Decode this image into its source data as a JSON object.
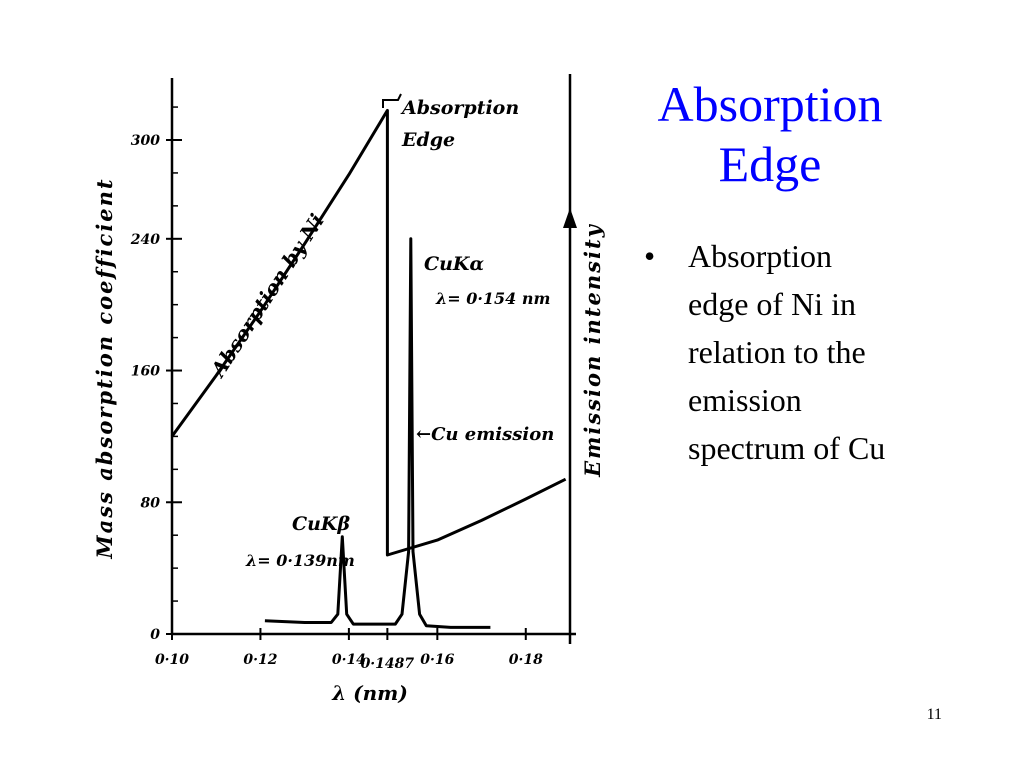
{
  "slide": {
    "title_line1": "Absorption",
    "title_line2": "Edge",
    "bullet_lines": [
      "Absorption",
      "edge of Ni in",
      "relation to the",
      "emission",
      "spectrum of Cu"
    ],
    "bullet_glyph": "•",
    "page_number": "11",
    "title_color": "#0000ff"
  },
  "chart_data": {
    "type": "line",
    "xlabel": "λ (nm)",
    "ylabel": "Mass absorption coefficient",
    "y2label": "Emission intensity",
    "xlim": [
      0.1,
      0.19
    ],
    "ylim": [
      0,
      330
    ],
    "x_ticks": [
      {
        "value": 0.1,
        "label": "0·10"
      },
      {
        "value": 0.12,
        "label": "0·12"
      },
      {
        "value": 0.14,
        "label": "0·14"
      },
      {
        "value": 0.1487,
        "label": "0·1487"
      },
      {
        "value": 0.16,
        "label": "0·16"
      },
      {
        "value": 0.18,
        "label": "0·18"
      }
    ],
    "y_ticks": [
      {
        "value": 0,
        "label": "0"
      },
      {
        "value": 80,
        "label": "80"
      },
      {
        "value": 160,
        "label": "160"
      },
      {
        "value": 240,
        "label": "240"
      },
      {
        "value": 300,
        "label": "300"
      }
    ],
    "series": [
      {
        "name": "Absorption by Ni",
        "x": [
          0.1,
          0.11,
          0.12,
          0.13,
          0.14,
          0.1487,
          0.1487,
          0.16,
          0.17,
          0.18,
          0.189
        ],
        "y": [
          120,
          157,
          196,
          237,
          279,
          318,
          48,
          57,
          69,
          82,
          94
        ]
      },
      {
        "name": "Cu emission",
        "x": [
          0.121,
          0.13,
          0.136,
          0.1375,
          0.1385,
          0.1395,
          0.141,
          0.145,
          0.1505,
          0.152,
          0.1535,
          0.154,
          0.1545,
          0.156,
          0.1575,
          0.163,
          0.172
        ],
        "y": [
          8,
          7,
          7,
          12,
          59,
          12,
          6,
          6,
          6,
          12,
          50,
          240,
          50,
          12,
          5,
          4,
          4
        ]
      }
    ],
    "annotations": {
      "absorption_edge": [
        "Absorption",
        "Edge"
      ],
      "cu_ka_name": "CuKα",
      "cu_ka_lambda": "λ= 0·154 nm",
      "cu_emission": "←Cu emission",
      "cu_kb_name": "CuKβ",
      "cu_kb_lambda": "λ= 0·139nm"
    },
    "grid": false,
    "legend": "none"
  }
}
